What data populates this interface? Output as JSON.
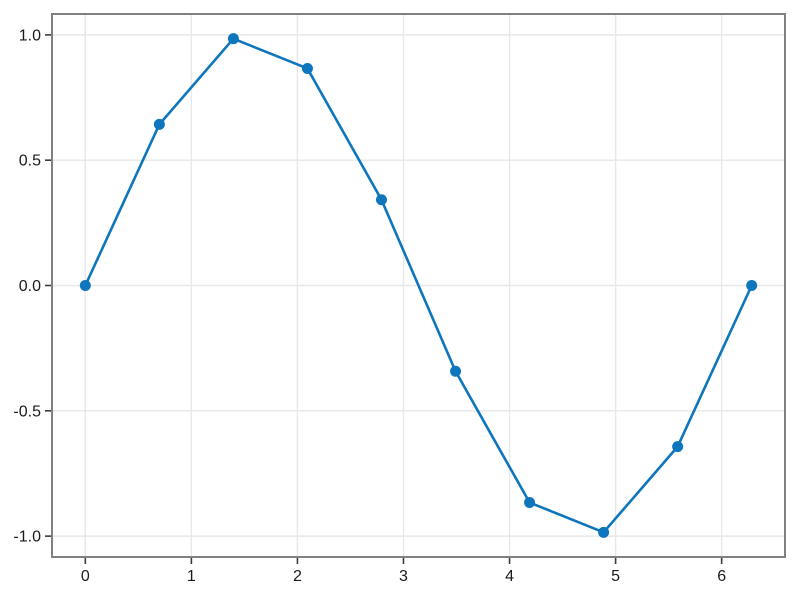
{
  "figure": {
    "background": "#ffffff"
  },
  "chart_data": {
    "type": "line",
    "description": "Single blue line series with circular markers, sine wave sampled at 10 evenly spaced points from 0 to 2*pi",
    "x": [
      0.0,
      0.6981,
      1.3963,
      2.0944,
      2.7925,
      3.4907,
      4.1888,
      4.8869,
      5.5851,
      6.2832
    ],
    "y": [
      0.0,
      0.6428,
      0.9848,
      0.866,
      0.342,
      -0.342,
      -0.866,
      -0.9848,
      -0.6428,
      0.0
    ],
    "xlim": [
      -0.3142,
      6.5973
    ],
    "ylim": [
      -1.0833,
      1.0833
    ],
    "xticks": {
      "values": [
        0,
        1,
        2,
        3,
        4,
        5,
        6
      ],
      "labels": [
        "0",
        "1",
        "2",
        "3",
        "4",
        "5",
        "6"
      ]
    },
    "yticks": {
      "values": [
        -1.0,
        -0.5,
        0.0,
        0.5,
        1.0
      ],
      "labels": [
        "-1.0",
        "-0.5",
        "0.0",
        "0.5",
        "1.0"
      ]
    },
    "grid": true,
    "legend": false,
    "style": {
      "line_color": "#0d76bc",
      "marker_color": "#0d76bc",
      "line_width": 2.6,
      "marker_radius": 5.5,
      "grid_color": "#e8e8e8",
      "grid_width": 1.4,
      "spine_color": "#808080",
      "spine_width": 2,
      "tick_color": "#3c3c3c",
      "tick_width": 1.6,
      "tick_length": 6,
      "label_color": "#1a1a1a",
      "label_font_size": 16
    }
  }
}
